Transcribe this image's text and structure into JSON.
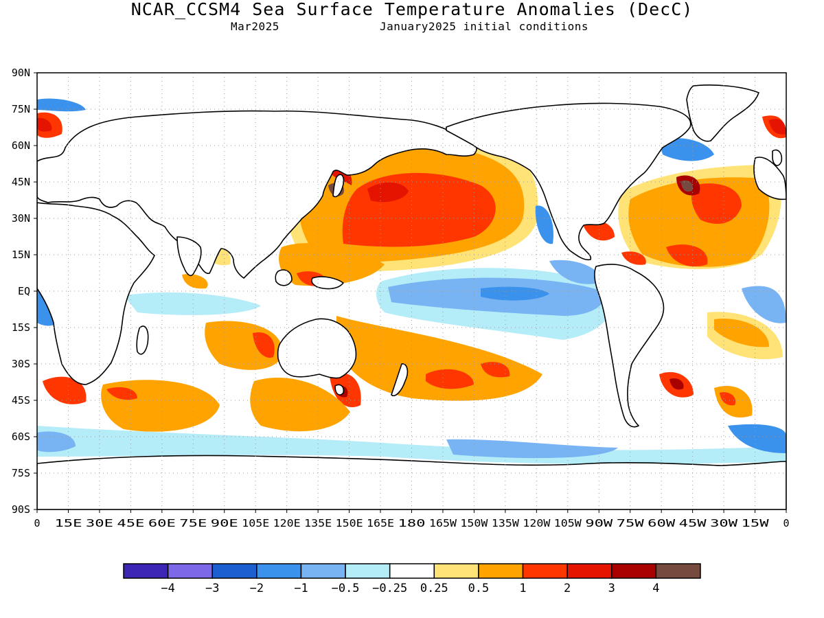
{
  "title": "NCAR_CCSM4 Sea Surface Temperature Anomalies (DecC)",
  "subtitle_left": "Mar2025",
  "subtitle_right": "January2025 initial conditions",
  "lat_ticks": [
    "90N",
    "75N",
    "60N",
    "45N",
    "30N",
    "15N",
    "EQ",
    "15S",
    "30S",
    "45S",
    "60S",
    "75S",
    "90S"
  ],
  "lon_ticks": [
    "0",
    "15E",
    "30E",
    "45E",
    "60E",
    "75E",
    "90E",
    "105E",
    "120E",
    "135E",
    "150E",
    "165E",
    "180",
    "165W",
    "150W",
    "135W",
    "120W",
    "105W",
    "90W",
    "75W",
    "60W",
    "45W",
    "30W",
    "15W",
    "0"
  ],
  "colorbar": {
    "colors": [
      "#3d25b4",
      "#7d69e8",
      "#1c5fcf",
      "#3b92ec",
      "#78b4f4",
      "#b4ecf8",
      "#ffffff",
      "#ffe377",
      "#ffa300",
      "#ff3600",
      "#e41400",
      "#a90000",
      "#774a3f"
    ],
    "labels": [
      "−4",
      "−3",
      "−2",
      "−1",
      "−0.5",
      "−0.25",
      "0.25",
      "0.5",
      "1",
      "2",
      "3",
      "4"
    ]
  },
  "map_colors": {
    "land": "#ffffff",
    "coast": "#000000",
    "grid": "#9a9a9a"
  }
}
